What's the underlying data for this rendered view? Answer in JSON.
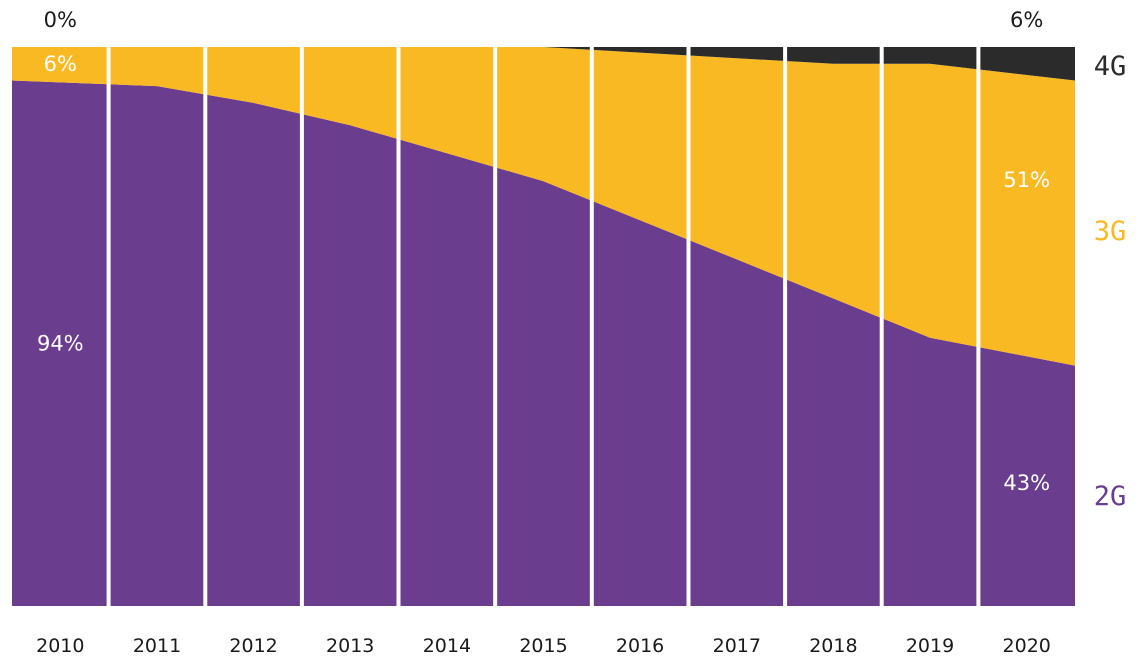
{
  "chart_data": {
    "type": "area",
    "stacking": "percent",
    "categories": [
      "2010",
      "2011",
      "2012",
      "2013",
      "2014",
      "2015",
      "2016",
      "2017",
      "2018",
      "2019",
      "2020"
    ],
    "series": [
      {
        "name": "2G",
        "color": "#6b3d8e",
        "values": [
          94,
          93,
          90,
          86,
          81,
          76,
          69,
          62,
          55,
          48,
          43
        ]
      },
      {
        "name": "3G",
        "color": "#f9b922",
        "values": [
          6,
          7,
          10,
          14,
          19,
          24,
          30,
          36,
          42,
          49,
          51
        ]
      },
      {
        "name": "4G",
        "color": "#2b2b2b",
        "values": [
          0,
          0,
          0,
          0,
          0,
          0,
          1,
          2,
          3,
          3,
          6
        ]
      }
    ],
    "ylim": [
      0,
      100
    ],
    "grid": false,
    "legend": "right",
    "annotations": [
      {
        "text": "0%",
        "color": "#1a1a1a"
      },
      {
        "text": "6%",
        "color": "#ffffff"
      },
      {
        "text": "94%",
        "color": "#ffffff"
      },
      {
        "text": "6%",
        "color": "#1a1a1a"
      },
      {
        "text": "51%",
        "color": "#ffffff"
      },
      {
        "text": "43%",
        "color": "#ffffff"
      }
    ]
  }
}
